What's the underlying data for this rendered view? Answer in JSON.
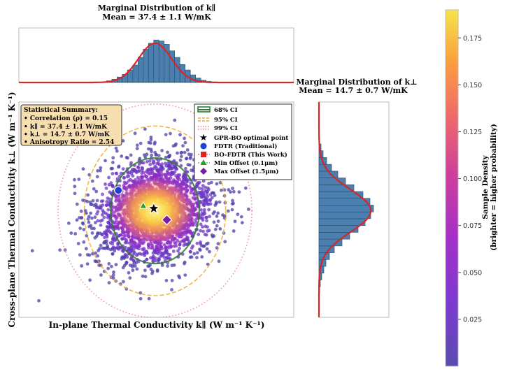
{
  "chart_data": [
    {
      "id": "top_marginal",
      "type": "histogram",
      "title": "Marginal Distribution of k∥",
      "subtitle": "Mean = 37.4 ± 1.1 W/mK",
      "xlim": [
        27,
        48
      ],
      "bins": [
        {
          "x": 33.5,
          "count": 0.01
        },
        {
          "x": 33.9,
          "count": 0.03
        },
        {
          "x": 34.3,
          "count": 0.06
        },
        {
          "x": 34.7,
          "count": 0.1
        },
        {
          "x": 35.1,
          "count": 0.15
        },
        {
          "x": 35.5,
          "count": 0.23
        },
        {
          "x": 35.9,
          "count": 0.32
        },
        {
          "x": 36.3,
          "count": 0.46
        },
        {
          "x": 36.7,
          "count": 0.61
        },
        {
          "x": 37.1,
          "count": 0.72
        },
        {
          "x": 37.5,
          "count": 0.78
        },
        {
          "x": 37.9,
          "count": 0.76
        },
        {
          "x": 38.3,
          "count": 0.7
        },
        {
          "x": 38.7,
          "count": 0.58
        },
        {
          "x": 39.1,
          "count": 0.46
        },
        {
          "x": 39.5,
          "count": 0.33
        },
        {
          "x": 39.9,
          "count": 0.23
        },
        {
          "x": 40.3,
          "count": 0.14
        },
        {
          "x": 40.7,
          "count": 0.08
        },
        {
          "x": 41.1,
          "count": 0.04
        },
        {
          "x": 41.5,
          "count": 0.02
        }
      ],
      "fit": {
        "mean": 37.4,
        "std": 1.1,
        "peak": 0.72
      },
      "bar_color": "#4a7fb0",
      "fit_color": "#d62728"
    },
    {
      "id": "right_marginal",
      "type": "histogram",
      "orientation": "horizontal",
      "title": "Marginal Distribution of k⊥",
      "subtitle": "Mean = 14.7 ± 0.7 W/mK",
      "ylim": [
        10.0,
        19.5
      ],
      "bins": [
        {
          "y": 11.2,
          "count": 0.01
        },
        {
          "y": 11.5,
          "count": 0.02
        },
        {
          "y": 11.8,
          "count": 0.04
        },
        {
          "y": 12.1,
          "count": 0.07
        },
        {
          "y": 12.4,
          "count": 0.1
        },
        {
          "y": 12.7,
          "count": 0.15
        },
        {
          "y": 13.0,
          "count": 0.22
        },
        {
          "y": 13.3,
          "count": 0.33
        },
        {
          "y": 13.6,
          "count": 0.44
        },
        {
          "y": 13.9,
          "count": 0.56
        },
        {
          "y": 14.2,
          "count": 0.66
        },
        {
          "y": 14.5,
          "count": 0.74
        },
        {
          "y": 14.8,
          "count": 0.78
        },
        {
          "y": 15.1,
          "count": 0.73
        },
        {
          "y": 15.4,
          "count": 0.63
        },
        {
          "y": 15.7,
          "count": 0.5
        },
        {
          "y": 16.0,
          "count": 0.38
        },
        {
          "y": 16.3,
          "count": 0.27
        },
        {
          "y": 16.6,
          "count": 0.18
        },
        {
          "y": 16.9,
          "count": 0.11
        },
        {
          "y": 17.2,
          "count": 0.06
        },
        {
          "y": 17.5,
          "count": 0.03
        },
        {
          "y": 17.8,
          "count": 0.01
        }
      ],
      "fit": {
        "mean": 14.7,
        "std": 0.7,
        "peak": 0.74
      },
      "bar_color": "#4a7fb0",
      "fit_color": "#d62728"
    },
    {
      "id": "joint",
      "type": "scatter",
      "xlabel": "In-plane Thermal Conductivity k∥ (W m⁻¹ K⁻¹)",
      "ylabel": "Cross-plane Thermal Conductivity k⊥ (W m⁻¹ K⁻¹)",
      "xlim": [
        27,
        48
      ],
      "ylim": [
        10.0,
        19.5
      ],
      "distribution": {
        "mean_x": 37.4,
        "std_x": 1.1,
        "mean_y": 14.7,
        "std_y": 0.7,
        "correlation": 0.15,
        "n_samples": 2500
      },
      "confidence_ellipses": [
        {
          "label": "68% CI",
          "rx": 3.38,
          "ry": 2.33,
          "color": "#2e7d32",
          "style": "solid"
        },
        {
          "label": "95% CI",
          "rx": 5.4,
          "ry": 3.74,
          "color": "#f0a830",
          "style": "dashed"
        },
        {
          "label": "99% CI",
          "rx": 7.4,
          "ry": 4.71,
          "color": "#f08080",
          "style": "dotted"
        }
      ],
      "markers": [
        {
          "label": "GPR-BO optimal point",
          "x": 37.3,
          "y": 14.8,
          "shape": "star",
          "color": "#000000"
        },
        {
          "label": "FDTR (Traditional)",
          "x": 34.6,
          "y": 15.6,
          "shape": "circle",
          "color": "#1f3fd6"
        },
        {
          "label": "BO-FDTR (This Work)",
          "x": 37.3,
          "y": 14.8,
          "shape": "square",
          "color": "#e02020"
        },
        {
          "label": "Min Offset (0.1μm)",
          "x": 36.5,
          "y": 14.9,
          "shape": "triangle",
          "color": "#2e9e2e"
        },
        {
          "label": "Max Offset (1.5μm)",
          "x": 38.3,
          "y": 14.3,
          "shape": "diamond",
          "color": "#7b1fa2"
        }
      ],
      "summary_box": {
        "title": "Statistical Summary:",
        "lines": [
          "• Correlation (ρ) = 0.15",
          "• k∥ = 37.4 ± 1.1 W/mK",
          "• k⊥ = 14.7 ± 0.7 W/mK",
          "• Anisotropy Ratio = 2.54"
        ]
      }
    },
    {
      "id": "colorbar",
      "type": "colorbar",
      "label": "Sample Density",
      "label_line2": "(brighter = higher probability)",
      "range": [
        0.0,
        0.19
      ],
      "ticks": [
        0.025,
        0.05,
        0.075,
        0.1,
        0.125,
        0.15,
        0.175
      ],
      "tick_labels": [
        "0.025",
        "0.050",
        "0.075",
        "0.100",
        "0.125",
        "0.150",
        "0.175"
      ],
      "colormap": [
        "#5b4bb0",
        "#7d3ad0",
        "#a430c8",
        "#cf3e9d",
        "#ee6a6a",
        "#fb9d3e",
        "#f7e34a"
      ]
    }
  ]
}
